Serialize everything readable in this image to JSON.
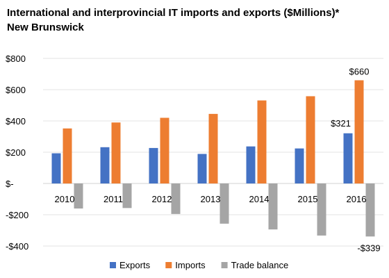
{
  "chart_data": {
    "type": "bar",
    "title": "International and interprovincial IT imports and exports ($Millions)*",
    "subtitle": "New Brunswick",
    "categories": [
      "2010",
      "2011",
      "2012",
      "2013",
      "2014",
      "2015",
      "2016"
    ],
    "series": [
      {
        "name": "Exports",
        "color": "#4472C4",
        "values": [
          193,
          232,
          227,
          189,
          237,
          224,
          321
        ]
      },
      {
        "name": "Imports",
        "color": "#ED7D31",
        "values": [
          352,
          390,
          420,
          445,
          531,
          558,
          660
        ]
      },
      {
        "name": "Trade balance",
        "color": "#A5A5A5",
        "values": [
          -160,
          -157,
          -195,
          -257,
          -294,
          -333,
          -339
        ]
      }
    ],
    "ylim": [
      -400,
      800
    ],
    "yticks": [
      {
        "value": 800,
        "label": "$800"
      },
      {
        "value": 600,
        "label": "$600"
      },
      {
        "value": 400,
        "label": "$400"
      },
      {
        "value": 200,
        "label": "$200"
      },
      {
        "value": 0,
        "label": "$-"
      },
      {
        "value": -200,
        "label": "-$200"
      },
      {
        "value": -400,
        "label": "-$400"
      }
    ],
    "data_labels": [
      {
        "series": 0,
        "index": 6,
        "text": "$321"
      },
      {
        "series": 1,
        "index": 6,
        "text": "$660"
      },
      {
        "series": 2,
        "index": 6,
        "text": "-$339"
      }
    ],
    "legend_position": "bottom",
    "grid": true
  }
}
